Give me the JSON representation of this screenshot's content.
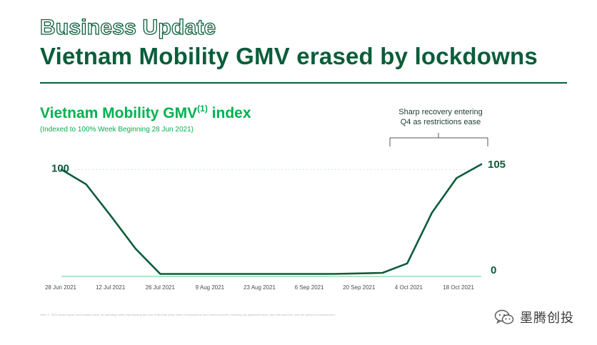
{
  "header": {
    "title": "Business Update",
    "subtitle": "Vietnam Mobility GMV erased by lockdowns"
  },
  "chart_header": {
    "title": "Vietnam Mobility GMV",
    "title_sup": "(1)",
    "title_suffix": " index",
    "subtitle": "(Indexed to 100% Week Beginning 28 Jun 2021)"
  },
  "annotation": {
    "line1": "Sharp recovery entering",
    "line2": "Q4 as restrictions ease"
  },
  "footnote": "Note: 1. GMV means gross merchandise value, an operating metric representing the sum of the total dollar value of transactions from Grab's services, including any applicable taxes, tips, tolls and fees, over the period of measurement.",
  "watermark": {
    "text": "墨腾创投",
    "icon": "wechat-icon"
  },
  "colors": {
    "line": "#0b5d3a",
    "accent": "#00b14f",
    "axis": "#7fd6a4"
  },
  "chart_data": {
    "type": "line",
    "title": "Vietnam Mobility GMV(1) index",
    "subtitle": "(Indexed to 100% Week Beginning 28 Jun 2021)",
    "xlabel": "",
    "ylabel": "",
    "ylim": [
      0,
      105
    ],
    "grid": false,
    "tick_labels": [
      "28 Jun 2021",
      "12 Jul 2021",
      "26 Jul 2021",
      "9 Aug 2021",
      "23 Aug 2021",
      "6 Sep 2021",
      "20 Sep 2021",
      "4 Oct 2021",
      "18 Oct 2021"
    ],
    "x": [
      0,
      1,
      2,
      3,
      4,
      5,
      6,
      7,
      8,
      9,
      10,
      11,
      12,
      13,
      14,
      15,
      16,
      17
    ],
    "values": [
      100,
      86,
      56,
      25,
      1,
      1,
      1,
      1,
      1,
      1,
      1,
      1,
      1.5,
      2,
      11,
      59,
      92,
      105
    ],
    "data_labels": [
      {
        "index": 0,
        "text": "100"
      },
      {
        "index": 17,
        "text": "105"
      }
    ],
    "baseline_label": "0",
    "reference_line_value": 100
  }
}
